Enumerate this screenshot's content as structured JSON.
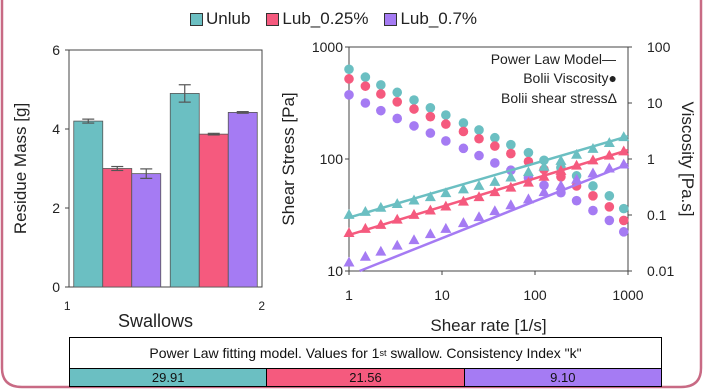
{
  "colors": {
    "unlub": "#6BBFC2",
    "lub025": "#F55A7E",
    "lub07": "#A57BF3",
    "frame": "#C86A84"
  },
  "legend": [
    "Unlub",
    "Lub_0.25%",
    "Lub_0.7%"
  ],
  "chart_data": [
    {
      "type": "bar",
      "xlabel": "Swallows",
      "ylabel": "Residue Mass [g]",
      "categories": [
        "1",
        "2"
      ],
      "ylim": [
        0,
        6
      ],
      "yticks": [
        "0",
        "2",
        "4",
        "6"
      ],
      "series": [
        {
          "name": "Unlub",
          "values": [
            4.2,
            4.9
          ],
          "errors": [
            0.05,
            0.22
          ]
        },
        {
          "name": "Lub_0.25%",
          "values": [
            3.0,
            3.87
          ],
          "errors": [
            0.05,
            0.02
          ]
        },
        {
          "name": "Lub_0.7%",
          "values": [
            2.87,
            4.42
          ],
          "errors": [
            0.12,
            0.02
          ]
        }
      ]
    },
    {
      "type": "scatter",
      "xlabel": "Shear rate [1/s]",
      "ylabel": "Shear Stress  [Pa]",
      "y2label": "Viscosity [Pa.s]",
      "xscale": "log",
      "yscale": "log",
      "y2scale": "log",
      "xlim": [
        1,
        1000
      ],
      "ylim": [
        10,
        1000
      ],
      "y2lim": [
        0.01,
        100
      ],
      "xticks": [
        "1",
        "10",
        "100",
        "1000"
      ],
      "yticks": [
        "10",
        "100",
        "1000"
      ],
      "y2ticks": [
        "0.01",
        "0.1",
        "1",
        "10",
        "100"
      ],
      "annotations": [
        "Power Law Model—",
        "Bolii Viscosity●",
        "Bolii shear stressΔ"
      ],
      "series_viscosity": [
        {
          "name": "Unlub",
          "x": [
            1,
            1.5,
            2.2,
            3.3,
            5,
            7.5,
            11,
            17,
            25,
            37,
            55,
            85,
            125,
            190,
            280,
            420,
            630,
            900
          ],
          "y": [
            40,
            29,
            21,
            15.5,
            11.3,
            8.2,
            6.1,
            4.4,
            3.3,
            2.4,
            1.8,
            1.3,
            0.95,
            0.7,
            0.5,
            0.33,
            0.22,
            0.13
          ]
        },
        {
          "name": "Lub_0.25%",
          "x": [
            1,
            1.5,
            2.2,
            3.3,
            5,
            7.5,
            11,
            17,
            25,
            37,
            55,
            85,
            125,
            190,
            280,
            420,
            630,
            900
          ],
          "y": [
            27,
            20,
            14.5,
            10.5,
            7.8,
            5.7,
            4.2,
            3.1,
            2.3,
            1.7,
            1.25,
            0.9,
            0.65,
            0.48,
            0.33,
            0.22,
            0.14,
            0.08
          ]
        },
        {
          "name": "Lub_0.7%",
          "x": [
            1,
            1.5,
            2.2,
            3.3,
            5,
            7.5,
            11,
            17,
            25,
            37,
            55,
            85,
            125,
            190,
            280,
            420,
            630,
            900
          ],
          "y": [
            14,
            10,
            7.3,
            5.3,
            3.9,
            2.9,
            2.1,
            1.55,
            1.15,
            0.85,
            0.63,
            0.46,
            0.34,
            0.25,
            0.18,
            0.12,
            0.08,
            0.05
          ]
        }
      ],
      "series_shear_stress": [
        {
          "name": "Unlub",
          "x": [
            1,
            1.5,
            2.2,
            3.3,
            5,
            7.5,
            11,
            17,
            25,
            37,
            55,
            85,
            125,
            190,
            280,
            420,
            630,
            900
          ],
          "y": [
            32,
            34,
            37,
            40,
            43,
            46,
            50,
            54,
            58,
            63,
            69,
            77,
            86,
            97,
            110,
            124,
            140,
            158
          ]
        },
        {
          "name": "Lub_0.25%",
          "x": [
            1,
            1.5,
            2.2,
            3.3,
            5,
            7.5,
            11,
            17,
            25,
            37,
            55,
            85,
            125,
            190,
            280,
            420,
            630,
            900
          ],
          "y": [
            22,
            24,
            26,
            29,
            32,
            35,
            38,
            42,
            46,
            51,
            56,
            62,
            70,
            79,
            88,
            98,
            108,
            118
          ]
        },
        {
          "name": "Lub_0.7%",
          "x": [
            1,
            1.5,
            2.2,
            3.3,
            5,
            7.5,
            11,
            17,
            25,
            37,
            55,
            85,
            125,
            190,
            280,
            420,
            630,
            900
          ],
          "y": [
            12,
            13.5,
            15,
            17,
            19,
            21.5,
            24,
            27,
            30.5,
            34.5,
            39,
            44,
            51,
            58,
            66,
            75,
            83,
            90
          ]
        }
      ],
      "power_law_lines": [
        {
          "name": "Unlub",
          "x": [
            1,
            1000
          ],
          "y": [
            30,
            160
          ]
        },
        {
          "name": "Lub_0.25%",
          "x": [
            1,
            1000
          ],
          "y": [
            21,
            120
          ]
        },
        {
          "name": "Lub_0.7%",
          "x": [
            1.3,
            1000
          ],
          "y": [
            10,
            90
          ]
        }
      ]
    }
  ],
  "table": {
    "caption_pre": "Power Law fitting model. Values for 1",
    "caption_sup": "st",
    "caption_post": " swallow. Consistency Index \"k\"",
    "values": [
      "29.91",
      "21.56",
      "9.10"
    ]
  }
}
